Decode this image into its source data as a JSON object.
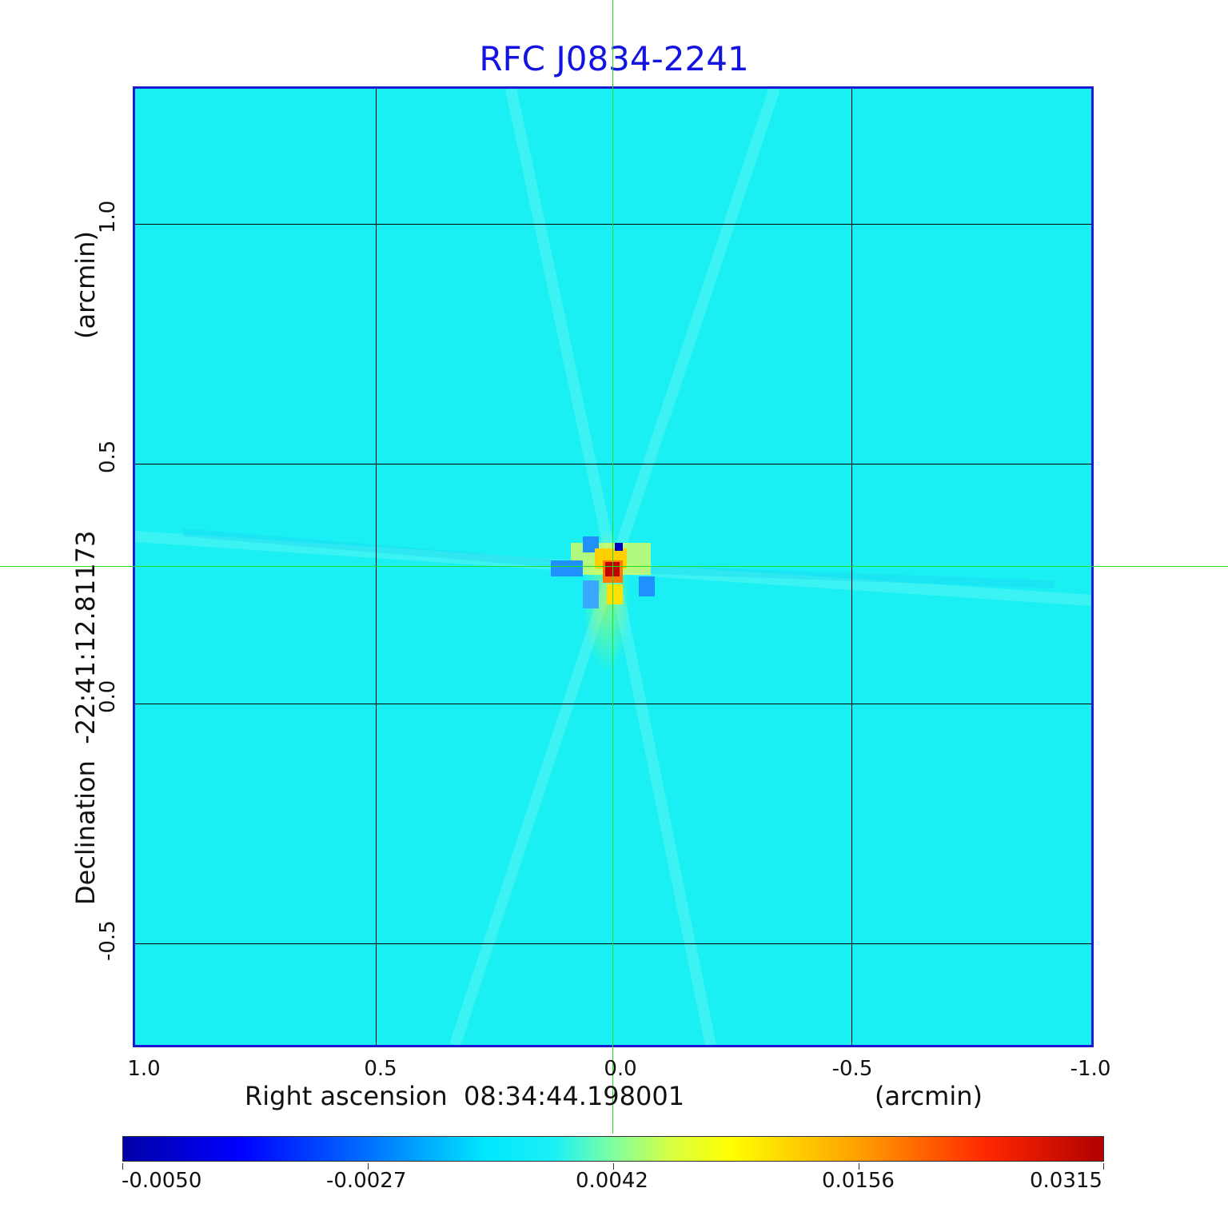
{
  "title": "RFC J0834-2241",
  "x_axis": {
    "label": "Right ascension  08:34:44.198001",
    "unit": "(arcmin)",
    "ticks": [
      "1.0",
      "0.5",
      "0.0",
      "-0.5",
      "-1.0"
    ]
  },
  "y_axis": {
    "label": "Declination  -22:41:12.81173",
    "unit": "(arcmin)",
    "ticks": [
      "1.0",
      "0.5",
      "0.0",
      "-0.5"
    ]
  },
  "colorbar": {
    "ticks": [
      "-0.0050",
      "-0.0027",
      "0.0042",
      "0.0156",
      "0.0315"
    ]
  },
  "colors": {
    "title": "#1414e0",
    "frame": "#1a1ad0",
    "crosshair": "#22e022",
    "background_map": "#1af0f4"
  }
}
